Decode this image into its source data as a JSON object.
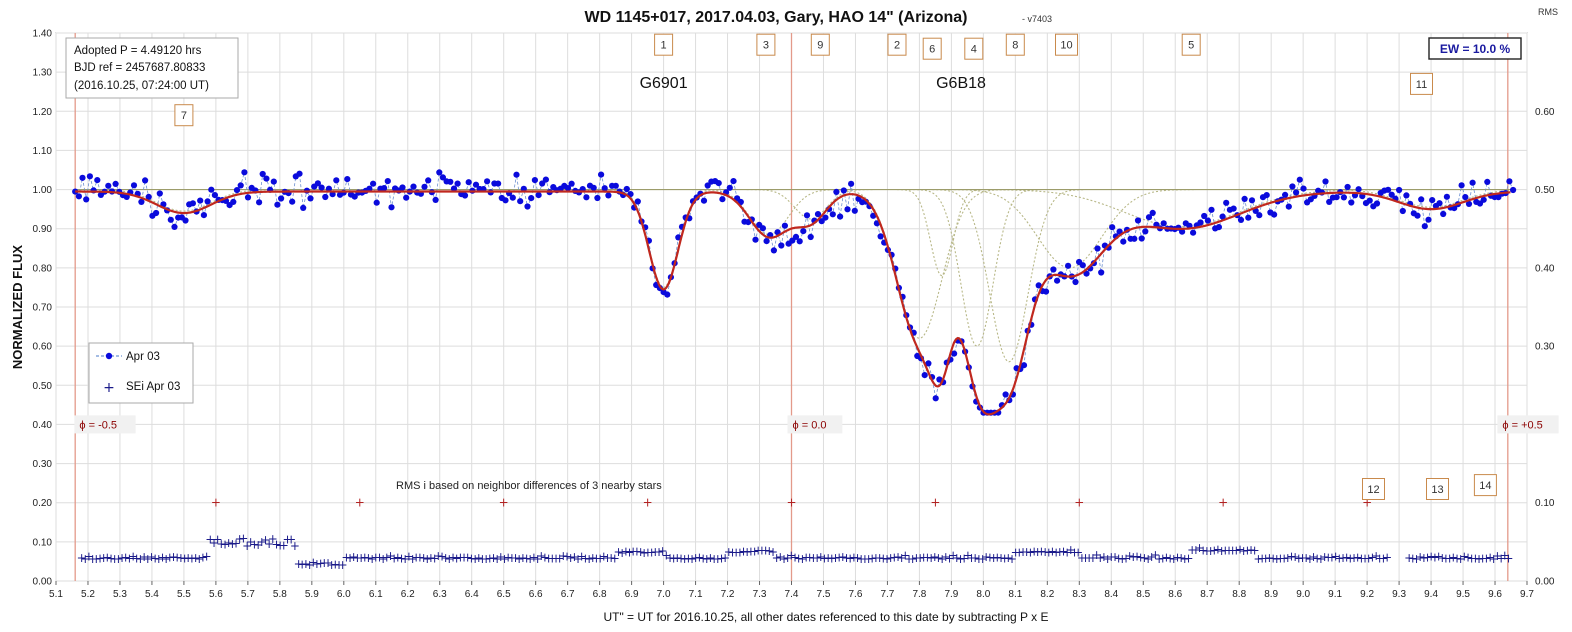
{
  "chart_data": {
    "type": "scatter",
    "title": "WD 1145+017, 2017.04.03, Gary, HAO 14\" (Arizona)",
    "version_tag": "- v7403",
    "xlabel": "UT\" = UT for 2016.10.25, all other dates referenced to this date by subtracting P x E",
    "ylabel": "NORMALIZED FLUX",
    "y2label": "RMS",
    "xlim": [
      5.1,
      9.7
    ],
    "ylim": [
      0.0,
      1.4
    ],
    "y2lim": [
      0.0,
      0.7
    ],
    "xticks": [
      "5.1",
      "5.2",
      "5.3",
      "5.4",
      "5.5",
      "5.6",
      "5.7",
      "5.8",
      "5.9",
      "6.0",
      "6.1",
      "6.2",
      "6.3",
      "6.4",
      "6.5",
      "6.6",
      "6.7",
      "6.8",
      "6.9",
      "7.0",
      "7.1",
      "7.2",
      "7.3",
      "7.4",
      "7.5",
      "7.6",
      "7.7",
      "7.8",
      "7.9",
      "8.0",
      "8.1",
      "8.2",
      "8.3",
      "8.4",
      "8.5",
      "8.6",
      "8.7",
      "8.8",
      "8.9",
      "9.0",
      "9.1",
      "9.2",
      "9.3",
      "9.4",
      "9.5",
      "9.6",
      "9.7"
    ],
    "yticks": [
      "0.00",
      "0.10",
      "0.20",
      "0.30",
      "0.40",
      "0.50",
      "0.60",
      "0.70",
      "0.80",
      "0.90",
      "1.00",
      "1.10",
      "1.20",
      "1.30",
      "1.40"
    ],
    "y2ticks": [
      "0.00",
      "0.10",
      "0.20",
      "0.30",
      "0.40",
      "0.50",
      "0.60"
    ],
    "info_lines": [
      "Adopted P = 4.49120  hrs",
      "BJD ref = 2457687.80833",
      "(2016.10.25,  07:24:00  UT)"
    ],
    "ew_label": "EW = 10.0 %",
    "note": "RMS i based on neighbor differences of 3 nearby stars",
    "group_labels": [
      {
        "text": "G6901",
        "x": 7.0,
        "y": 1.26
      },
      {
        "text": "G6B18",
        "x": 7.93,
        "y": 1.26
      }
    ],
    "phase_labels": [
      {
        "text": "ϕ = -0.5",
        "x": 5.17
      },
      {
        "text": "ϕ = 0.0",
        "x": 7.4
      },
      {
        "text": "ϕ = +0.5",
        "x": 9.62
      }
    ],
    "phase_lines_x": [
      5.16,
      7.4,
      9.64
    ],
    "grid": true,
    "legend": {
      "position": "left",
      "entries": [
        "Apr 03",
        "SEi Apr 03"
      ]
    },
    "dip_tags": [
      {
        "text": "1",
        "x": 7.0,
        "y": 1.37
      },
      {
        "text": "3",
        "x": 7.32,
        "y": 1.37
      },
      {
        "text": "9",
        "x": 7.49,
        "y": 1.37
      },
      {
        "text": "2",
        "x": 7.73,
        "y": 1.37
      },
      {
        "text": "6",
        "x": 7.84,
        "y": 1.36
      },
      {
        "text": "4",
        "x": 7.97,
        "y": 1.36
      },
      {
        "text": "8",
        "x": 8.1,
        "y": 1.37
      },
      {
        "text": "10",
        "x": 8.26,
        "y": 1.37
      },
      {
        "text": "5",
        "x": 8.65,
        "y": 1.37
      },
      {
        "text": "11",
        "x": 9.37,
        "y": 1.27
      },
      {
        "text": "7",
        "x": 5.5,
        "y": 1.19
      },
      {
        "text": "12",
        "x": 9.22,
        "y": 0.235
      },
      {
        "text": "13",
        "x": 9.42,
        "y": 0.235
      },
      {
        "text": "14",
        "x": 9.57,
        "y": 0.245
      }
    ],
    "dips": [
      {
        "center": 5.5,
        "depth": 0.055,
        "sigma": 0.085
      },
      {
        "center": 7.0,
        "depth": 0.25,
        "sigma": 0.045
      },
      {
        "center": 7.33,
        "depth": 0.115,
        "sigma": 0.06
      },
      {
        "center": 7.46,
        "depth": 0.075,
        "sigma": 0.05
      },
      {
        "center": 7.8,
        "depth": 0.38,
        "sigma": 0.07
      },
      {
        "center": 7.87,
        "depth": 0.22,
        "sigma": 0.035
      },
      {
        "center": 7.98,
        "depth": 0.4,
        "sigma": 0.05
      },
      {
        "center": 8.08,
        "depth": 0.44,
        "sigma": 0.06
      },
      {
        "center": 8.27,
        "depth": 0.2,
        "sigma": 0.1
      },
      {
        "center": 8.62,
        "depth": 0.095,
        "sigma": 0.18
      },
      {
        "center": 9.4,
        "depth": 0.045,
        "sigma": 0.1
      }
    ],
    "series": [
      {
        "name": "Apr 03",
        "type": "scatter",
        "color": "#0a0adc",
        "baseline": 1.0,
        "noise": 0.04,
        "x_start": 5.16,
        "x_end": 9.66,
        "step": 0.0115
      },
      {
        "name": "SEi Apr 03",
        "type": "scatter",
        "color": "#1a1a8a",
        "axis": "y2",
        "baseline": 0.028,
        "noise": 0.006
      },
      {
        "name": "model",
        "type": "line",
        "color": "#c0281e"
      },
      {
        "name": "components",
        "type": "line",
        "color": "#b8b888"
      }
    ],
    "sei_markers": {
      "y": 0.2,
      "x": [
        5.6,
        6.05,
        6.5,
        6.95,
        7.4,
        7.85,
        8.3,
        8.75,
        9.2
      ],
      "color": "#b22222"
    }
  }
}
